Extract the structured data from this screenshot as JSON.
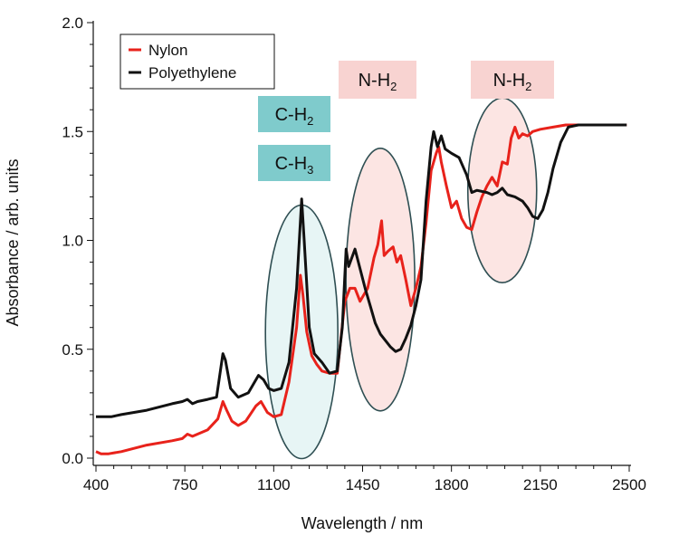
{
  "chart_data": {
    "type": "line",
    "xlabel": "Wavelength / nm",
    "ylabel": "Absorbance / arb. units",
    "xlim": [
      390,
      2500
    ],
    "ylim": [
      -0.02,
      2.0
    ],
    "x_ticks": [
      400,
      750,
      1100,
      1450,
      1800,
      2150,
      2500
    ],
    "x_tick_labels": [
      "400",
      "750",
      "1100",
      "1450",
      "1800",
      "2150",
      "2500"
    ],
    "y_ticks": [
      0.0,
      0.5,
      1.0,
      1.5,
      2.0
    ],
    "y_tick_labels": [
      "0.0",
      "0.5",
      "1.0",
      "1.5",
      "2.0"
    ],
    "grid": false,
    "legend_position": "top-left",
    "series": [
      {
        "name": "Nylon",
        "color": "#e8221b",
        "points": [
          [
            400,
            0.03
          ],
          [
            420,
            0.02
          ],
          [
            450,
            0.02
          ],
          [
            500,
            0.03
          ],
          [
            600,
            0.06
          ],
          [
            700,
            0.08
          ],
          [
            740,
            0.09
          ],
          [
            760,
            0.11
          ],
          [
            780,
            0.1
          ],
          [
            800,
            0.11
          ],
          [
            840,
            0.13
          ],
          [
            880,
            0.18
          ],
          [
            900,
            0.26
          ],
          [
            915,
            0.22
          ],
          [
            935,
            0.17
          ],
          [
            960,
            0.15
          ],
          [
            990,
            0.17
          ],
          [
            1030,
            0.24
          ],
          [
            1050,
            0.26
          ],
          [
            1075,
            0.21
          ],
          [
            1100,
            0.19
          ],
          [
            1130,
            0.2
          ],
          [
            1160,
            0.35
          ],
          [
            1190,
            0.6
          ],
          [
            1205,
            0.84
          ],
          [
            1215,
            0.75
          ],
          [
            1230,
            0.58
          ],
          [
            1250,
            0.47
          ],
          [
            1270,
            0.43
          ],
          [
            1290,
            0.4
          ],
          [
            1320,
            0.39
          ],
          [
            1350,
            0.39
          ],
          [
            1380,
            0.72
          ],
          [
            1400,
            0.78
          ],
          [
            1420,
            0.78
          ],
          [
            1440,
            0.72
          ],
          [
            1470,
            0.78
          ],
          [
            1495,
            0.92
          ],
          [
            1510,
            0.98
          ],
          [
            1525,
            1.09
          ],
          [
            1535,
            0.93
          ],
          [
            1550,
            0.95
          ],
          [
            1570,
            0.97
          ],
          [
            1585,
            0.9
          ],
          [
            1600,
            0.93
          ],
          [
            1620,
            0.82
          ],
          [
            1640,
            0.7
          ],
          [
            1660,
            0.78
          ],
          [
            1680,
            0.88
          ],
          [
            1700,
            1.08
          ],
          [
            1720,
            1.32
          ],
          [
            1740,
            1.4
          ],
          [
            1750,
            1.43
          ],
          [
            1760,
            1.36
          ],
          [
            1780,
            1.25
          ],
          [
            1800,
            1.15
          ],
          [
            1820,
            1.18
          ],
          [
            1840,
            1.1
          ],
          [
            1860,
            1.06
          ],
          [
            1880,
            1.05
          ],
          [
            1900,
            1.13
          ],
          [
            1920,
            1.2
          ],
          [
            1940,
            1.25
          ],
          [
            1960,
            1.29
          ],
          [
            1980,
            1.25
          ],
          [
            2000,
            1.36
          ],
          [
            2020,
            1.35
          ],
          [
            2035,
            1.47
          ],
          [
            2050,
            1.52
          ],
          [
            2065,
            1.47
          ],
          [
            2080,
            1.49
          ],
          [
            2100,
            1.48
          ],
          [
            2120,
            1.5
          ],
          [
            2150,
            1.51
          ],
          [
            2200,
            1.52
          ],
          [
            2250,
            1.53
          ],
          [
            2300,
            1.53
          ],
          [
            2400,
            1.53
          ],
          [
            2490,
            1.53
          ]
        ]
      },
      {
        "name": "Polyethylene",
        "color": "#111111",
        "points": [
          [
            400,
            0.19
          ],
          [
            430,
            0.19
          ],
          [
            460,
            0.19
          ],
          [
            500,
            0.2
          ],
          [
            600,
            0.22
          ],
          [
            700,
            0.25
          ],
          [
            740,
            0.26
          ],
          [
            760,
            0.27
          ],
          [
            780,
            0.25
          ],
          [
            800,
            0.26
          ],
          [
            840,
            0.27
          ],
          [
            875,
            0.28
          ],
          [
            900,
            0.48
          ],
          [
            910,
            0.45
          ],
          [
            930,
            0.32
          ],
          [
            960,
            0.28
          ],
          [
            1000,
            0.3
          ],
          [
            1040,
            0.38
          ],
          [
            1060,
            0.36
          ],
          [
            1080,
            0.32
          ],
          [
            1100,
            0.31
          ],
          [
            1130,
            0.32
          ],
          [
            1160,
            0.44
          ],
          [
            1190,
            0.78
          ],
          [
            1210,
            1.19
          ],
          [
            1220,
            1.0
          ],
          [
            1240,
            0.6
          ],
          [
            1260,
            0.48
          ],
          [
            1290,
            0.44
          ],
          [
            1320,
            0.39
          ],
          [
            1350,
            0.4
          ],
          [
            1370,
            0.6
          ],
          [
            1385,
            0.96
          ],
          [
            1395,
            0.88
          ],
          [
            1420,
            0.96
          ],
          [
            1440,
            0.87
          ],
          [
            1460,
            0.78
          ],
          [
            1480,
            0.7
          ],
          [
            1500,
            0.62
          ],
          [
            1520,
            0.57
          ],
          [
            1540,
            0.54
          ],
          [
            1560,
            0.51
          ],
          [
            1580,
            0.49
          ],
          [
            1600,
            0.5
          ],
          [
            1620,
            0.55
          ],
          [
            1640,
            0.61
          ],
          [
            1660,
            0.7
          ],
          [
            1680,
            0.82
          ],
          [
            1700,
            1.18
          ],
          [
            1720,
            1.43
          ],
          [
            1730,
            1.5
          ],
          [
            1745,
            1.43
          ],
          [
            1760,
            1.48
          ],
          [
            1775,
            1.42
          ],
          [
            1800,
            1.4
          ],
          [
            1830,
            1.38
          ],
          [
            1860,
            1.3
          ],
          [
            1880,
            1.22
          ],
          [
            1900,
            1.23
          ],
          [
            1940,
            1.22
          ],
          [
            1960,
            1.21
          ],
          [
            1980,
            1.22
          ],
          [
            2000,
            1.24
          ],
          [
            2020,
            1.21
          ],
          [
            2050,
            1.2
          ],
          [
            2080,
            1.18
          ],
          [
            2100,
            1.15
          ],
          [
            2120,
            1.11
          ],
          [
            2140,
            1.1
          ],
          [
            2160,
            1.14
          ],
          [
            2180,
            1.22
          ],
          [
            2200,
            1.33
          ],
          [
            2230,
            1.45
          ],
          [
            2260,
            1.52
          ],
          [
            2300,
            1.53
          ],
          [
            2400,
            1.53
          ],
          [
            2490,
            1.53
          ]
        ]
      }
    ],
    "annotations": [
      {
        "text": "C-H",
        "subscript": "2",
        "color": "#7fcbcc"
      },
      {
        "text": "C-H",
        "subscript": "3",
        "color": "#7fcbcc"
      },
      {
        "text": "N-H",
        "subscript": "2",
        "color": "#f8d3d1"
      },
      {
        "text": "N-H",
        "subscript": "2",
        "color": "#f8d3d1"
      }
    ],
    "highlight_ellipses": [
      {
        "center_x": 1210,
        "center_y": 0.58,
        "color": "#dff1f1"
      },
      {
        "center_x": 1520,
        "center_y": 0.82,
        "color": "#fbdcda"
      },
      {
        "center_x": 2000,
        "center_y": 1.23,
        "color": "#fbdcda"
      }
    ]
  }
}
